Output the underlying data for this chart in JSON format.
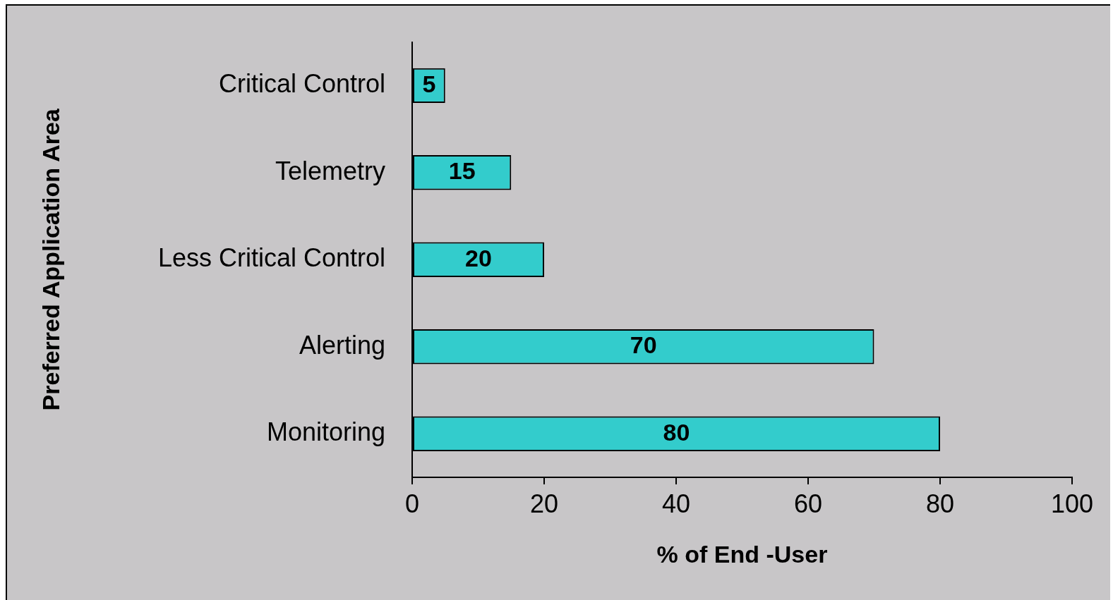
{
  "chart_data": {
    "type": "bar",
    "orientation": "horizontal",
    "categories": [
      "Critical Control",
      "Telemetry",
      "Less Critical Control",
      "Alerting",
      "Monitoring"
    ],
    "values": [
      5,
      15,
      20,
      70,
      80
    ],
    "color": "#33cccc",
    "xlabel": "% of End -User",
    "ylabel": "Preferred Application Area",
    "xlim": [
      0,
      100
    ],
    "xticks": [
      0,
      20,
      40,
      60,
      80,
      100
    ],
    "data_labels": true,
    "legend": false
  }
}
